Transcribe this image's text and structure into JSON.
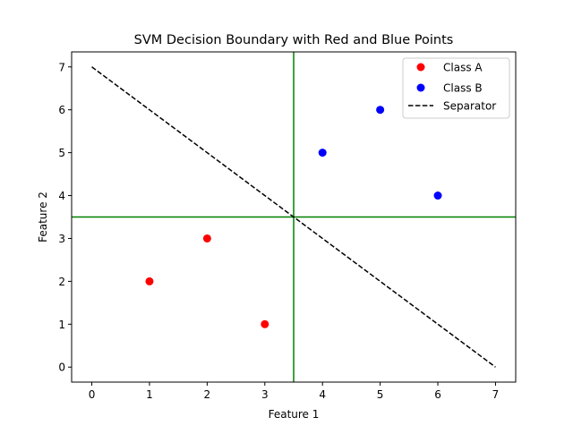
{
  "chart_data": {
    "type": "scatter",
    "title": "SVM Decision Boundary with Red and Blue Points",
    "xlabel": "Feature 1",
    "ylabel": "Feature 2",
    "xlim": [
      -0.35,
      7.35
    ],
    "ylim": [
      -0.35,
      7.35
    ],
    "xticks": [
      0,
      1,
      2,
      3,
      4,
      5,
      6,
      7
    ],
    "yticks": [
      0,
      1,
      2,
      3,
      4,
      5,
      6,
      7
    ],
    "xtick_labels": [
      "0",
      "1",
      "2",
      "3",
      "4",
      "5",
      "6",
      "7"
    ],
    "ytick_labels": [
      "0",
      "1",
      "2",
      "3",
      "4",
      "5",
      "6",
      "7"
    ],
    "grid": false,
    "legend_position": "top-right",
    "series": [
      {
        "name": "Class A",
        "kind": "scatter",
        "color": "#ff0000",
        "x": [
          1,
          2,
          3
        ],
        "y": [
          2,
          3,
          1
        ]
      },
      {
        "name": "Class B",
        "kind": "scatter",
        "color": "#0000ff",
        "x": [
          4,
          5,
          6
        ],
        "y": [
          5,
          6,
          4
        ]
      },
      {
        "name": "Separator",
        "kind": "line",
        "style": "dashed",
        "color": "#000000",
        "x": [
          0,
          7
        ],
        "y": [
          7,
          0
        ]
      }
    ],
    "reference_lines": [
      {
        "orientation": "vertical",
        "x": 3.5,
        "color": "#008000"
      },
      {
        "orientation": "horizontal",
        "y": 3.5,
        "color": "#008000"
      }
    ]
  }
}
